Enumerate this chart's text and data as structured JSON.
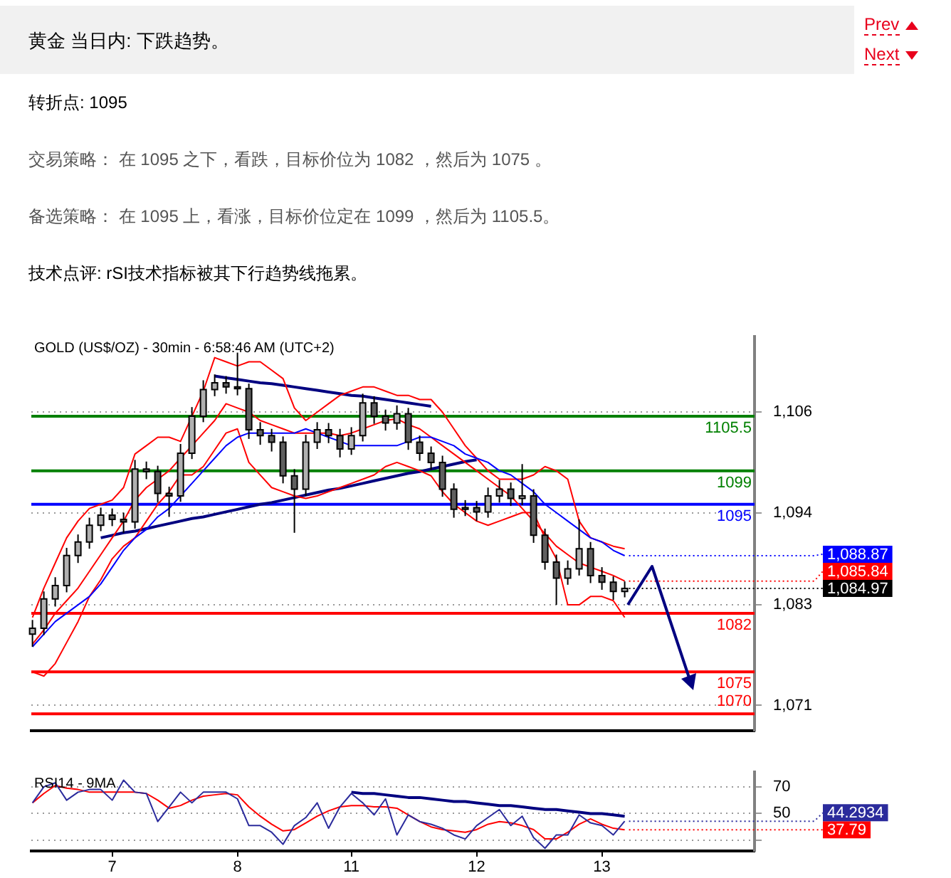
{
  "chart_data": [
    {
      "type": "other",
      "title": "黄金 当日内: 下跌趋势。",
      "annotations": [
        "Prev",
        "Next",
        "转折点: 1095",
        "交易策略： 在 1095 之下，看跌，目标价位为 1082 ，然后为 1075 。",
        "备选策略： 在 1095 上，看涨，目标价位定在 1099 ，然后为 1105.5。",
        "技术点评: rSI技术指标被其下行趋势线拖累。"
      ]
    },
    {
      "type": "candlestick",
      "title": "GOLD (US$/OZ) - 30min - 6:58:46 AM (UTC+2)",
      "categories": [
        null,
        null,
        null,
        null,
        null,
        null,
        null,
        null,
        null,
        null,
        null,
        null,
        null,
        null,
        null,
        null,
        null,
        null,
        null,
        null,
        null,
        null,
        null,
        null,
        null,
        null,
        null,
        null,
        null,
        null,
        null,
        null,
        null,
        null,
        null,
        null,
        null,
        null,
        null,
        null,
        null,
        null,
        null,
        null,
        null,
        null,
        null,
        null,
        null,
        null,
        null,
        null,
        null
      ],
      "value_labels": [
        null,
        null,
        null,
        null,
        null,
        null,
        null,
        null,
        null,
        null,
        null,
        null,
        null,
        null,
        null,
        null,
        null,
        null,
        null,
        null,
        null,
        null,
        null,
        null,
        null,
        null,
        null,
        null,
        null,
        null,
        null,
        null,
        null,
        null,
        null,
        null,
        null,
        null,
        null,
        null,
        null,
        null,
        null,
        null,
        null,
        null,
        null,
        null,
        null,
        null,
        null,
        null,
        "1,084.97"
      ],
      "ohlc": [
        [
          1079.5,
          1081.2,
          1078.0,
          1080.2
        ],
        [
          1080.2,
          1084.6,
          1079.4,
          1083.7
        ],
        [
          1083.7,
          1086.3,
          1082.8,
          1085.3
        ],
        [
          1085.3,
          1089.8,
          1084.5,
          1088.9
        ],
        [
          1088.9,
          1091.4,
          1088.0,
          1090.5
        ],
        [
          1090.5,
          1093.4,
          1089.7,
          1092.5
        ],
        [
          1092.5,
          1094.6,
          1091.8,
          1093.7
        ],
        [
          1093.7,
          1094.5,
          1092.4,
          1093.2
        ],
        [
          1093.2,
          1094.0,
          1091.6,
          1092.9
        ],
        [
          1092.9,
          1100.3,
          1092.1,
          1099.2
        ],
        [
          1099.2,
          1100.1,
          1098.0,
          1098.9
        ],
        [
          1098.9,
          1099.6,
          1095.2,
          1096.3
        ],
        [
          1096.3,
          1097.1,
          1093.5,
          1096.0
        ],
        [
          1096.0,
          1102.2,
          1095.3,
          1101.1
        ],
        [
          1101.1,
          1106.6,
          1100.4,
          1105.5
        ],
        [
          1105.5,
          1109.8,
          1104.8,
          1108.7
        ],
        [
          1108.7,
          1110.5,
          1107.9,
          1109.5
        ],
        [
          1109.5,
          1110.3,
          1108.2,
          1109.0
        ],
        [
          1109.0,
          1113.1,
          1108.0,
          1108.8
        ],
        [
          1108.8,
          1109.4,
          1102.8,
          1103.9
        ],
        [
          1103.9,
          1104.8,
          1102.1,
          1103.2
        ],
        [
          1103.2,
          1104.0,
          1101.3,
          1102.4
        ],
        [
          1102.4,
          1103.1,
          1097.5,
          1098.4
        ],
        [
          1098.4,
          1099.2,
          1091.6,
          1096.8
        ],
        [
          1096.8,
          1103.3,
          1096.0,
          1102.4
        ],
        [
          1102.4,
          1104.8,
          1101.6,
          1103.9
        ],
        [
          1103.9,
          1104.7,
          1102.3,
          1103.2
        ],
        [
          1103.2,
          1104.0,
          1100.6,
          1101.6
        ],
        [
          1101.6,
          1104.2,
          1100.9,
          1103.2
        ],
        [
          1103.2,
          1108.2,
          1102.5,
          1107.1
        ],
        [
          1107.1,
          1107.9,
          1104.6,
          1105.5
        ],
        [
          1105.5,
          1106.3,
          1103.8,
          1104.7
        ],
        [
          1104.7,
          1106.8,
          1103.9,
          1105.8
        ],
        [
          1105.8,
          1106.5,
          1101.5,
          1102.4
        ],
        [
          1102.4,
          1103.2,
          1100.2,
          1101.1
        ],
        [
          1101.1,
          1101.9,
          1099.1,
          1100.0
        ],
        [
          1100.0,
          1100.8,
          1095.9,
          1096.8
        ],
        [
          1096.8,
          1097.5,
          1093.4,
          1094.4
        ],
        [
          1094.4,
          1095.5,
          1093.6,
          1094.6
        ],
        [
          1094.6,
          1095.4,
          1093.0,
          1094.1
        ],
        [
          1094.1,
          1097.0,
          1093.4,
          1096.0
        ],
        [
          1096.0,
          1097.9,
          1095.2,
          1096.8
        ],
        [
          1096.8,
          1097.6,
          1094.8,
          1095.7
        ],
        [
          1095.7,
          1099.8,
          1094.9,
          1096.0
        ],
        [
          1096.0,
          1096.8,
          1090.4,
          1091.3
        ],
        [
          1091.3,
          1092.1,
          1087.2,
          1088.1
        ],
        [
          1088.1,
          1089.0,
          1083.0,
          1086.2
        ],
        [
          1086.2,
          1088.3,
          1085.4,
          1087.3
        ],
        [
          1087.3,
          1093.2,
          1086.5,
          1089.7
        ],
        [
          1089.7,
          1090.5,
          1085.6,
          1086.5
        ],
        [
          1086.5,
          1087.5,
          1084.8,
          1085.7
        ],
        [
          1085.7,
          1086.4,
          1083.6,
          1084.6
        ],
        [
          1084.6,
          1085.8,
          1083.9,
          1084.97
        ]
      ],
      "series": [
        {
          "type": "line",
          "color": "#0000ff",
          "values": [
            1078,
            1079.5,
            1081,
            1082,
            1083,
            1084,
            1085.5,
            1087.5,
            1089.5,
            1091,
            1092,
            1093.5,
            1094.5,
            1096,
            1097.5,
            1099,
            1100.5,
            1102,
            1103,
            1103.5,
            1103.5,
            1103.5,
            1103.5,
            1103.5,
            1104,
            1103.5,
            1103,
            1102.5,
            1102,
            1102,
            1102,
            1102,
            1102,
            1102.5,
            1103,
            1103,
            1102.5,
            1102,
            1101,
            1100.5,
            1100,
            1099,
            1098.5,
            1097.5,
            1096.5,
            1095,
            1094,
            1093,
            1092,
            1091,
            1090.5,
            1089.5,
            1088.87
          ],
          "value_labels": [
            null,
            null,
            null,
            null,
            null,
            null,
            null,
            null,
            null,
            null,
            null,
            null,
            null,
            null,
            null,
            null,
            null,
            null,
            null,
            null,
            null,
            null,
            null,
            null,
            null,
            null,
            null,
            null,
            null,
            null,
            null,
            null,
            null,
            null,
            null,
            null,
            null,
            null,
            null,
            null,
            null,
            null,
            null,
            null,
            null,
            null,
            null,
            null,
            null,
            null,
            null,
            null,
            "1,088.87"
          ]
        },
        {
          "type": "line",
          "color": "#ff0000",
          "values": [
            1081.5,
            1085,
            1088,
            1091,
            1093,
            1094.5,
            1095,
            1095.5,
            1097,
            1101,
            1102,
            1103,
            1103,
            1102.5,
            1105.5,
            1108.5,
            1112.5,
            1112,
            1111.5,
            1112,
            1112,
            1111,
            1110,
            1106.5,
            1105,
            1106,
            1107,
            1108,
            1108.5,
            1109,
            1109,
            1108.5,
            1108,
            1108,
            1107.5,
            1107.5,
            1106,
            1104,
            1102,
            1100.5,
            1099,
            1098,
            1098,
            1098,
            1098.5,
            1099.5,
            1099,
            1098,
            1093,
            1091,
            1090.5,
            1090,
            1089.7
          ]
        },
        {
          "type": "line",
          "color": "#ff0000",
          "values": [
            1078.3,
            1080,
            1082,
            1083.5,
            1085,
            1087,
            1089,
            1091,
            1093,
            1095.5,
            1097,
            1098,
            1099,
            1100.5,
            1102,
            1103.5,
            1105,
            1107,
            1106.5,
            1106,
            1105,
            1104.5,
            1104,
            1103.5,
            1103.5,
            1103.5,
            1103.5,
            1103.2,
            1103.5,
            1104,
            1104.5,
            1105,
            1105.2,
            1104.5,
            1104,
            1103,
            1102,
            1101,
            1100,
            1099,
            1098,
            1097,
            1096,
            1094.5,
            1093,
            1091.5,
            1090,
            1089,
            1088,
            1087.5,
            1087,
            1086.5,
            1085.84
          ],
          "value_labels": [
            null,
            null,
            null,
            null,
            null,
            null,
            null,
            null,
            null,
            null,
            null,
            null,
            null,
            null,
            null,
            null,
            null,
            null,
            null,
            null,
            null,
            null,
            null,
            null,
            null,
            null,
            null,
            null,
            null,
            null,
            null,
            null,
            null,
            null,
            null,
            null,
            null,
            null,
            null,
            null,
            null,
            null,
            null,
            null,
            null,
            null,
            null,
            null,
            null,
            null,
            null,
            null,
            "1,085.84"
          ]
        },
        {
          "type": "line",
          "color": "#ff0000",
          "values": [
            1075,
            1074.5,
            1076,
            1078.5,
            1081,
            1084,
            1086,
            1088.5,
            1090,
            1091,
            1093,
            1095,
            1096.5,
            1098.5,
            1098.5,
            1099.5,
            1101.5,
            1103.5,
            1104,
            1100,
            1098.5,
            1097,
            1096.5,
            1096,
            1095.7,
            1096,
            1096.5,
            1097,
            1097.5,
            1098,
            1098.5,
            1099.5,
            1100,
            1099.5,
            1099,
            1098.4,
            1096.5,
            1095,
            1094,
            1093,
            1092.5,
            1093,
            1093.5,
            1094,
            1094,
            1091,
            1088.5,
            1083,
            1083,
            1084,
            1084,
            1083.5,
            1081.5
          ]
        },
        {
          "type": "line",
          "color": "#000080",
          "values": [
            null,
            null,
            null,
            null,
            null,
            null,
            null,
            null,
            null,
            null,
            null,
            null,
            null,
            null,
            null,
            null,
            1110.3,
            1110.1,
            1109.9,
            1109.7,
            1109.5,
            1109.4,
            1109.2,
            1109.0,
            1108.8,
            1108.6,
            1108.4,
            1108.2,
            1108.0,
            1107.9,
            1107.7,
            1107.5,
            1107.3,
            1107.1,
            1106.9,
            1106.7,
            null,
            null,
            null,
            null,
            null,
            null,
            null,
            null,
            null,
            null,
            null,
            null,
            null,
            null,
            null,
            null,
            null
          ]
        },
        {
          "type": "line",
          "color": "#000080",
          "values": [
            null,
            null,
            null,
            null,
            null,
            null,
            1091.0,
            1091.3,
            1091.6,
            1091.8,
            1092.1,
            1092.4,
            1092.7,
            1093.0,
            1093.3,
            1093.5,
            1093.8,
            1094.1,
            1094.4,
            1094.7,
            1095.0,
            1095.2,
            1095.5,
            1095.8,
            1096.1,
            1096.4,
            1096.7,
            1096.9,
            1097.2,
            1097.5,
            1097.8,
            1098.1,
            1098.4,
            1098.7,
            1098.9,
            1099.2,
            1099.5,
            1099.8,
            1100.1,
            1100.3,
            null,
            null,
            null,
            null,
            null,
            null,
            null,
            null,
            null,
            null,
            null,
            null,
            null
          ]
        }
      ],
      "ylim": [
        1068,
        1115
      ],
      "yticks": [
        {
          "value": 1071,
          "label": "1,071"
        },
        {
          "value": 1083,
          "label": "1,083"
        },
        {
          "value": 1094,
          "label": "1,094"
        },
        {
          "value": 1106,
          "label": "1,106"
        }
      ],
      "ref_lines": [
        {
          "axis": "y",
          "value": 1105.5,
          "label": "1105.5",
          "color": "#008000"
        },
        {
          "axis": "y",
          "value": 1099,
          "label": "1099",
          "color": "#008000"
        },
        {
          "axis": "y",
          "value": 1095,
          "label": "1095",
          "color": "#0000ff"
        },
        {
          "axis": "y",
          "value": 1082,
          "label": "1082",
          "color": "#ff0000"
        },
        {
          "axis": "y",
          "value": 1075,
          "label": "1075",
          "color": "#ff0000"
        },
        {
          "axis": "y",
          "value": 1070,
          "label": "1070",
          "color": "#ff0000"
        }
      ],
      "grid": "y",
      "tick_labels": "y"
    },
    {
      "type": "line",
      "title": "RSI14 - 9MA",
      "categories": [
        null,
        null,
        null,
        null,
        null,
        null,
        null,
        "7",
        null,
        null,
        null,
        null,
        null,
        null,
        null,
        null,
        null,
        null,
        "8",
        null,
        null,
        null,
        null,
        null,
        null,
        null,
        null,
        null,
        "11",
        null,
        null,
        null,
        null,
        null,
        null,
        null,
        null,
        null,
        null,
        "12",
        null,
        null,
        null,
        null,
        null,
        null,
        null,
        null,
        null,
        null,
        "13",
        null,
        null
      ],
      "series": [
        {
          "color": "#2b2b9c",
          "values": [
            58,
            70,
            73,
            60,
            66,
            68,
            68,
            60,
            75,
            66,
            65,
            44,
            55,
            66,
            58,
            66,
            66,
            66,
            61,
            41,
            41,
            36,
            27,
            41,
            47,
            58,
            39,
            55,
            65,
            58,
            49,
            61,
            34,
            49,
            44,
            42,
            39,
            34,
            31,
            41,
            47,
            53,
            41,
            48,
            32,
            24,
            34,
            34,
            49,
            43,
            41,
            34,
            44.2934
          ],
          "value_labels": [
            null,
            null,
            null,
            null,
            null,
            null,
            null,
            null,
            null,
            null,
            null,
            null,
            null,
            null,
            null,
            null,
            null,
            null,
            null,
            null,
            null,
            null,
            null,
            null,
            null,
            null,
            null,
            null,
            null,
            null,
            null,
            null,
            null,
            null,
            null,
            null,
            null,
            null,
            null,
            null,
            null,
            null,
            null,
            null,
            null,
            null,
            null,
            null,
            null,
            null,
            null,
            null,
            "44.2934"
          ]
        },
        {
          "color": "#ff0000",
          "values": [
            58,
            65,
            71,
            69,
            68,
            66,
            66,
            66,
            66,
            66,
            65,
            60,
            54,
            56,
            60,
            63,
            64,
            65,
            64,
            55,
            48,
            42,
            37,
            38,
            43,
            48,
            52,
            55,
            56,
            56,
            55,
            55,
            54,
            49,
            44,
            40,
            38,
            37,
            36,
            38,
            42,
            44,
            43,
            41,
            38,
            31,
            31,
            36,
            42,
            46,
            42,
            39,
            37.79
          ],
          "value_labels": [
            null,
            null,
            null,
            null,
            null,
            null,
            null,
            null,
            null,
            null,
            null,
            null,
            null,
            null,
            null,
            null,
            null,
            null,
            null,
            null,
            null,
            null,
            null,
            null,
            null,
            null,
            null,
            null,
            null,
            null,
            null,
            null,
            null,
            null,
            null,
            null,
            null,
            null,
            null,
            null,
            null,
            null,
            null,
            null,
            null,
            null,
            null,
            null,
            null,
            null,
            null,
            null,
            "37.79"
          ]
        },
        {
          "color": "#000080",
          "values": [
            null,
            null,
            null,
            null,
            null,
            null,
            null,
            null,
            null,
            null,
            null,
            null,
            null,
            null,
            null,
            null,
            null,
            null,
            null,
            null,
            null,
            null,
            null,
            null,
            null,
            null,
            null,
            null,
            66,
            65,
            65,
            64,
            63,
            62,
            62,
            61,
            60,
            59,
            59,
            58,
            57,
            56,
            56,
            55,
            54,
            53,
            53,
            52,
            51,
            50,
            50,
            49,
            48
          ]
        }
      ],
      "ylim": [
        22,
        81
      ],
      "yticks": [
        70,
        50,
        {
          "value": 30,
          "label": null
        }
      ],
      "grid": "y"
    }
  ]
}
